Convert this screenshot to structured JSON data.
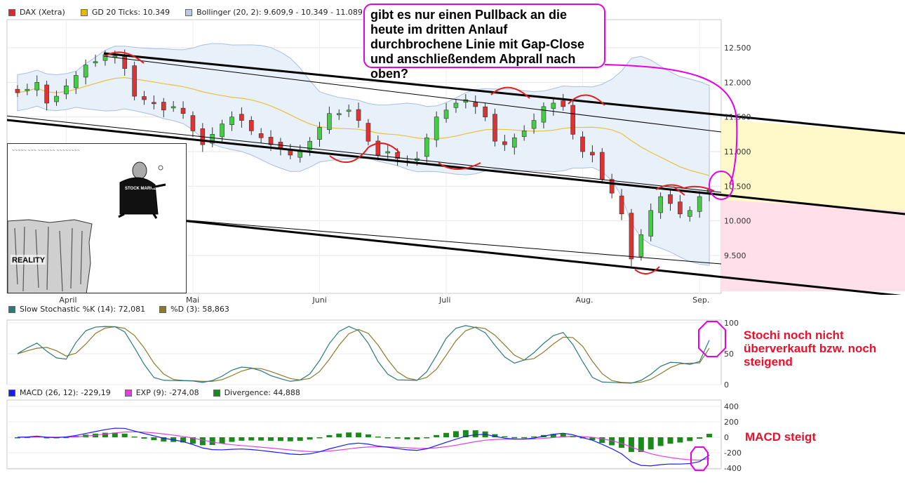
{
  "legend_main": {
    "dax": "DAX (Xetra)",
    "gd": "GD 20 Ticks: 10.349",
    "boll": "Bollinger (20, 2): 9.609,9 - 10.349 - 11.089",
    "dax_color": "#d82c2c",
    "gd_color": "#e6b800",
    "boll_color": "#b9cbe8"
  },
  "legend_stoch": {
    "k": "Slow Stochastic %K (14): 72,081",
    "d": "%D (3): 58,863",
    "k_color": "#2a7a7a",
    "d_color": "#8a7a2a"
  },
  "legend_macd": {
    "macd": "MACD (26, 12): -229,19",
    "exp": "EXP (9): -274,08",
    "div": "Divergence: 44,888",
    "macd_color": "#1a1aff",
    "exp_color": "#e040e0",
    "div_color": "#1a8a1a"
  },
  "annotations": {
    "question": "gibt es nur einen Pullback an die heute im dritten Anlauf durchbrochene Linie mit Gap-Close und anschließendem Abprall nach oben?",
    "stochi": "Stochi noch nicht überverkauft bzw. noch steigend",
    "macd": "MACD steigt",
    "accent": "#e600e6",
    "text_red": "#e8102a"
  },
  "cartoon": {
    "reality": "REALITY",
    "stock_market": "STOCK MARKET"
  },
  "chart_data": [
    {
      "type": "candlestick",
      "title": "DAX (Xetra)",
      "x_labels": [
        "April",
        "Mai",
        "Juni",
        "Juli",
        "Aug.",
        "Sep."
      ],
      "y_ticks": [
        "12.500",
        "12.000",
        "11.500",
        "11.000",
        "10.500",
        "10.000",
        "9.500"
      ],
      "ylim": [
        9200,
        12800
      ],
      "grid": true,
      "close_approx": [
        11850,
        11900,
        12000,
        11700,
        11800,
        11950,
        12100,
        12250,
        12300,
        12400,
        12380,
        12200,
        11800,
        11750,
        11700,
        11600,
        11650,
        11550,
        11300,
        11100,
        11250,
        11400,
        11500,
        11450,
        11300,
        11200,
        11100,
        11050,
        10950,
        11000,
        11150,
        11350,
        11550,
        11550,
        11600,
        11450,
        11150,
        10950,
        11000,
        10900,
        10850,
        10900,
        11200,
        11500,
        11600,
        11700,
        11750,
        11650,
        11500,
        11150,
        11100,
        11200,
        11300,
        11450,
        11650,
        11700,
        11650,
        11250,
        11000,
        10950,
        10600,
        10400,
        10100,
        9450,
        9800,
        10150,
        10350,
        10250,
        10100,
        10150,
        10350,
        10450
      ],
      "gd20_last": 10349,
      "bollinger_last": [
        9609.9,
        10349,
        11089
      ]
    },
    {
      "type": "line",
      "title": "Slow Stochastic",
      "y_ticks": [
        "100",
        "50",
        "0"
      ],
      "ylim": [
        0,
        100
      ],
      "series": [
        {
          "name": "Slow Stochastic %K (14): 72,081",
          "last": 72.081
        },
        {
          "name": "%D (3): 58,863",
          "last": 58.863
        }
      ]
    },
    {
      "type": "line",
      "title": "MACD",
      "y_ticks": [
        "400",
        "200",
        "0",
        "-200",
        "-400"
      ],
      "ylim": [
        -450,
        450
      ],
      "series": [
        {
          "name": "MACD (26, 12): -229,19",
          "last": -229.19
        },
        {
          "name": "EXP (9): -274,08",
          "last": -274.08
        },
        {
          "name": "Divergence: 44,888",
          "last": 44.888
        }
      ]
    }
  ]
}
